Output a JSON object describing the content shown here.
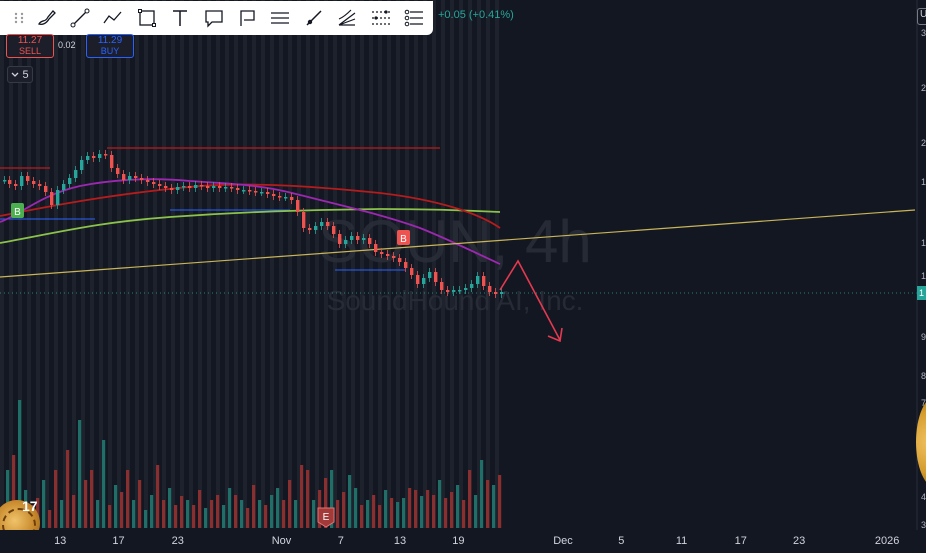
{
  "toolbar": {
    "tools": [
      {
        "name": "brush-icon"
      },
      {
        "name": "trend-line-icon"
      },
      {
        "name": "path-icon"
      },
      {
        "name": "rectangle-icon"
      },
      {
        "name": "text-icon"
      },
      {
        "name": "callout-icon"
      },
      {
        "name": "flag-note-icon"
      },
      {
        "name": "parallel-channel-icon"
      },
      {
        "name": "ray-icon"
      },
      {
        "name": "fib-fan-icon"
      },
      {
        "name": "fib-retracement-icon"
      },
      {
        "name": "pitchfork-icon"
      }
    ]
  },
  "quote": {
    "change": "+0.05 (+0.41%)",
    "sell_price": "11.27",
    "sell_label": "SELL",
    "spread": "0.02",
    "buy_price": "11.29",
    "buy_label": "BUY"
  },
  "collapse_count": "5",
  "axis_corner_label": "U",
  "current_price_tag": "1",
  "y_axis_ticks": [
    {
      "label": "3",
      "frac": 0.05
    },
    {
      "label": "2",
      "frac": 0.15
    },
    {
      "label": "2",
      "frac": 0.25
    },
    {
      "label": "1",
      "frac": 0.32
    },
    {
      "label": "1",
      "frac": 0.43
    },
    {
      "label": "1",
      "frac": 0.49
    },
    {
      "label": "9",
      "frac": 0.6
    },
    {
      "label": "8",
      "frac": 0.67
    },
    {
      "label": "7",
      "frac": 0.72
    },
    {
      "label": "5",
      "frac": 0.83
    },
    {
      "label": "4",
      "frac": 0.89
    },
    {
      "label": "3",
      "frac": 0.94
    }
  ],
  "watermark": {
    "symbol": "SOUN, 4h",
    "company": "SoundHound AI, Inc."
  },
  "x_axis": {
    "labels": [
      {
        "text": "13",
        "frac": 0.065
      },
      {
        "text": "17",
        "frac": 0.128
      },
      {
        "text": "23",
        "frac": 0.192
      },
      {
        "text": "Nov",
        "frac": 0.304
      },
      {
        "text": "7",
        "frac": 0.368
      },
      {
        "text": "13",
        "frac": 0.432
      },
      {
        "text": "19",
        "frac": 0.495
      },
      {
        "text": "Dec",
        "frac": 0.608
      },
      {
        "text": "5",
        "frac": 0.671
      },
      {
        "text": "11",
        "frac": 0.736
      },
      {
        "text": "17",
        "frac": 0.8
      },
      {
        "text": "23",
        "frac": 0.863
      },
      {
        "text": "2026",
        "frac": 0.958
      }
    ]
  },
  "markers": {
    "buy_1": "B",
    "buy_2": "B",
    "earnings": "E"
  },
  "logo_text": "17",
  "colors": {
    "background": "#131722",
    "up": "#26a69a",
    "down": "#ef5350",
    "ma_purple": "#9c27b0",
    "ma_red": "#b71c1c",
    "ma_green": "#8bc34a",
    "trendline": "#c9b458",
    "arrow": "#e53950"
  }
}
